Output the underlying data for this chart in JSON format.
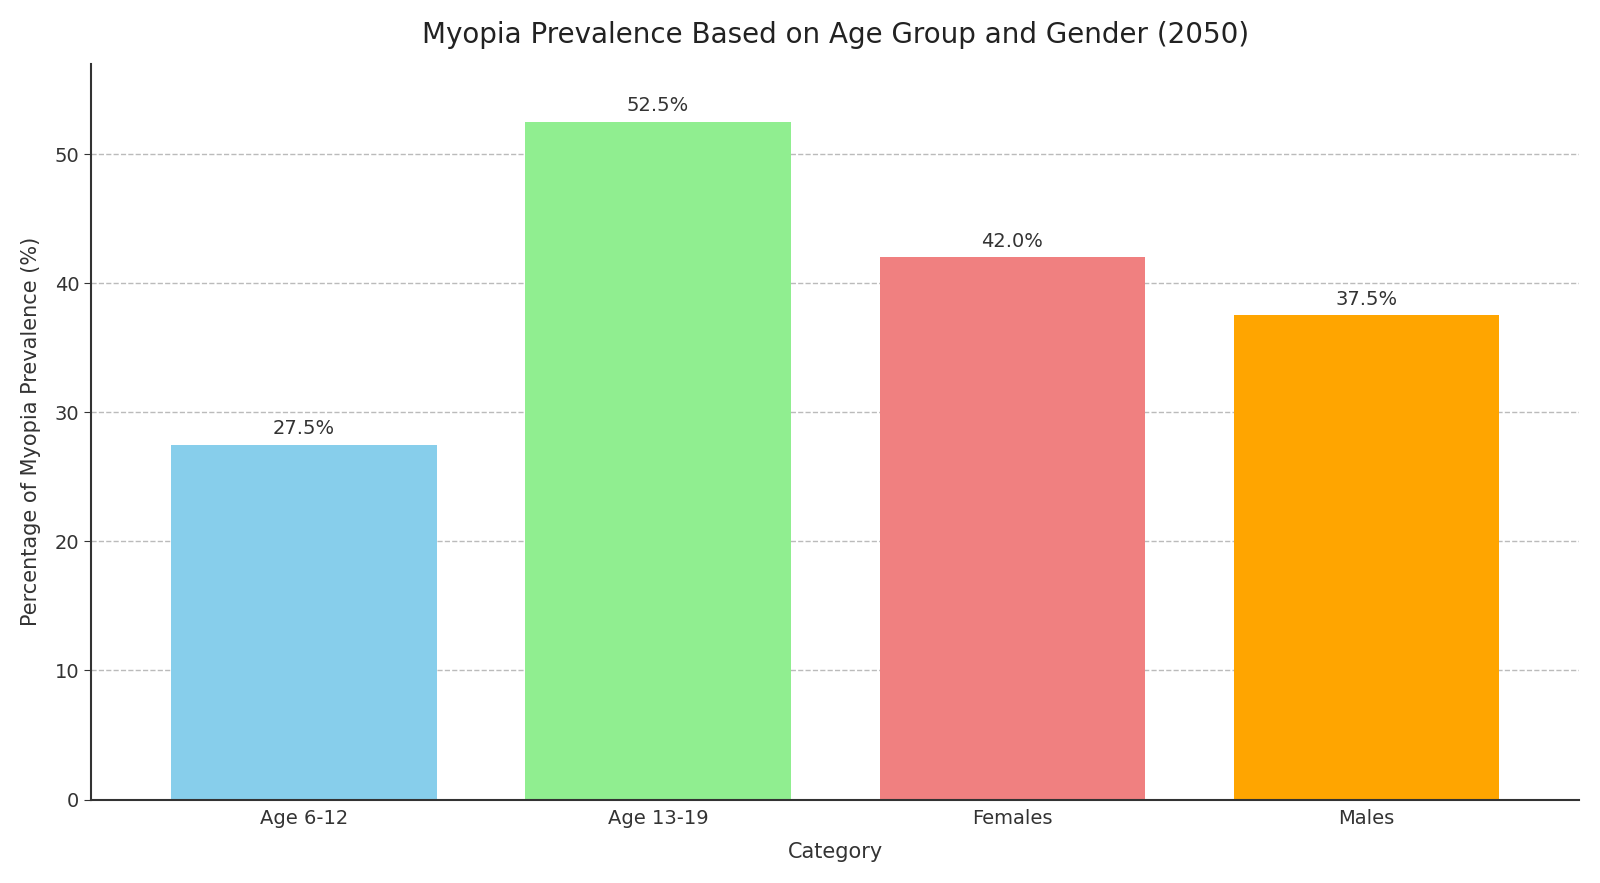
{
  "title": "Myopia Prevalence Based on Age Group and Gender (2050)",
  "categories": [
    "Age 6-12",
    "Age 13-19",
    "Females",
    "Males"
  ],
  "values": [
    27.5,
    52.5,
    42.0,
    37.5
  ],
  "bar_colors": [
    "#87CEEB",
    "#90EE90",
    "#F08080",
    "#FFA500"
  ],
  "xlabel": "Category",
  "ylabel": "Percentage of Myopia Prevalence (%)",
  "ylim": [
    0,
    57
  ],
  "yticks": [
    0,
    10,
    20,
    30,
    40,
    50
  ],
  "title_fontsize": 20,
  "axis_label_fontsize": 15,
  "tick_fontsize": 14,
  "annotation_fontsize": 14,
  "bar_width": 0.75,
  "grid_color": "#bbbbbb",
  "background_color": "#ffffff"
}
